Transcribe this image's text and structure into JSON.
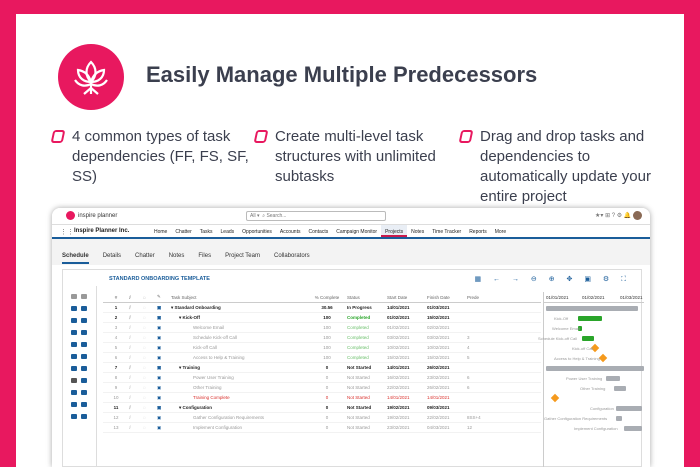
{
  "headline": "Easily Manage Multiple Predecessors",
  "features": [
    "4 common types of task dependencies (FF, FS, SF, SS)",
    "Create multi-level task structures with unlimited subtasks",
    "Drag and drop tasks and dependencies to automatically update your entire project"
  ],
  "app": {
    "brand": "inspire planner",
    "search_scope": "All",
    "search_placeholder": "Search...",
    "org_name": "Inspire Planner Inc.",
    "nav": [
      "Home",
      "Chatter",
      "Tasks",
      "Leads",
      "Opportunities",
      "Accounts",
      "Contacts",
      "Campaign Monitor",
      "Projects",
      "Notes",
      "Time Tracker",
      "Reports",
      "More"
    ],
    "active_nav": "Projects",
    "tabs": [
      "Schedule",
      "Details",
      "Chatter",
      "Notes",
      "Files",
      "Project Team",
      "Collaborators"
    ],
    "active_tab": "Schedule",
    "panel_title": "STANDARD ONBOARDING TEMPLATE",
    "columns": [
      "Task Subject",
      "% Complete",
      "Status",
      "Start Date",
      "Finish Date",
      "Prede"
    ],
    "rows": [
      {
        "n": "1",
        "name": "Standard Onboarding",
        "pct": "30.56",
        "status": "In Progress",
        "start": "14/01/2021",
        "finish": "01/03/2021",
        "pred": "",
        "level": 0
      },
      {
        "n": "2",
        "name": "Kick-Off",
        "pct": "100",
        "status": "Completed",
        "start": "01/02/2021",
        "finish": "15/02/2021",
        "pred": "",
        "level": 1
      },
      {
        "n": "3",
        "name": "Welcome Email",
        "pct": "100",
        "status": "Completed",
        "start": "01/02/2021",
        "finish": "02/02/2021",
        "pred": "",
        "level": 2
      },
      {
        "n": "4",
        "name": "Schedule Kick-off Call",
        "pct": "100",
        "status": "Completed",
        "start": "03/02/2021",
        "finish": "03/02/2021",
        "pred": "3",
        "level": 2
      },
      {
        "n": "5",
        "name": "Kick-off Call",
        "pct": "100",
        "status": "Completed",
        "start": "10/02/2021",
        "finish": "10/02/2021",
        "pred": "4",
        "level": 2
      },
      {
        "n": "6",
        "name": "Access to Help & Training",
        "pct": "100",
        "status": "Completed",
        "start": "15/02/2021",
        "finish": "15/02/2021",
        "pred": "5",
        "level": 2
      },
      {
        "n": "7",
        "name": "Training",
        "pct": "0",
        "status": "Not Started",
        "start": "14/01/2021",
        "finish": "26/02/2021",
        "pred": "",
        "level": 1
      },
      {
        "n": "8",
        "name": "Power User Training",
        "pct": "0",
        "status": "Not Started",
        "start": "16/02/2021",
        "finish": "23/02/2021",
        "pred": "6",
        "level": 2
      },
      {
        "n": "9",
        "name": "Other Training",
        "pct": "0",
        "status": "Not Started",
        "start": "22/02/2021",
        "finish": "26/02/2021",
        "pred": "6",
        "level": 2
      },
      {
        "n": "10",
        "name": "Training Complete",
        "pct": "0",
        "status": "Not Started",
        "start": "14/01/2021",
        "finish": "14/01/2021",
        "pred": "",
        "level": 2,
        "red": true
      },
      {
        "n": "11",
        "name": "Configuration",
        "pct": "0",
        "status": "Not Started",
        "start": "19/02/2021",
        "finish": "09/03/2021",
        "pred": "",
        "level": 1
      },
      {
        "n": "12",
        "name": "Gather Configuration Requirements",
        "pct": "0",
        "status": "Not Started",
        "start": "19/02/2021",
        "finish": "22/02/2021",
        "pred": "8SS+4",
        "level": 2
      },
      {
        "n": "13",
        "name": "Implement Configuration",
        "pct": "0",
        "status": "Not Started",
        "start": "23/02/2021",
        "finish": "04/03/2021",
        "pred": "12",
        "level": 2
      }
    ],
    "gantt_dates": [
      "01/01/2021",
      "01/02/2021",
      "01/03/2021"
    ],
    "gantt_labels": [
      "Kick-Off",
      "Welcome Email",
      "Schedule Kick-off Call",
      "Kick-off Call",
      "Access to Help & Training",
      "Power User Training",
      "Other Training",
      "Configuration",
      "Gather Configuration Requirements",
      "Implement Configuration"
    ],
    "colors": {
      "brand": "#e8185f",
      "accent": "#1a5d9a",
      "completed": "#2aa52a",
      "milestone": "#f59a1d"
    }
  }
}
